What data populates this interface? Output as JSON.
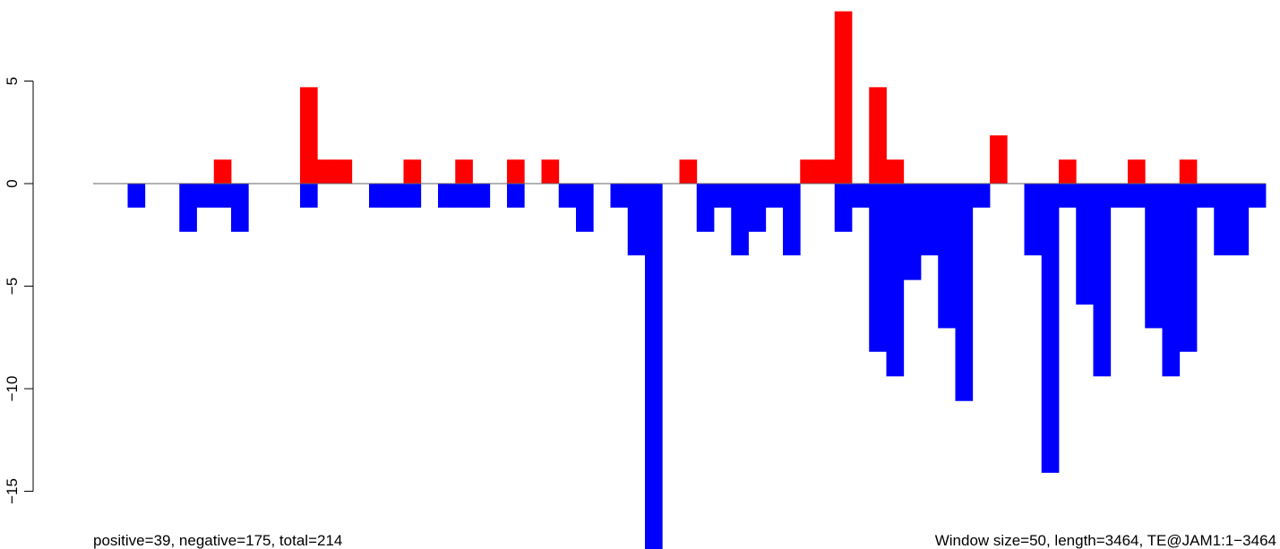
{
  "chart_data": {
    "type": "bar",
    "x_range": [
      0,
      3464
    ],
    "ylim": [
      -17.9,
      8.5
    ],
    "yticks": [
      5,
      0,
      -5,
      -10,
      -15
    ],
    "ytick_labels": [
      "5",
      "0",
      "−5",
      "−10",
      "−15"
    ],
    "positive_color": "#ff0000",
    "negative_color": "#0000ff",
    "baseline_color": "#666666",
    "series": [
      {
        "name": "positive",
        "values": [
          0,
          0,
          0,
          0,
          0,
          0,
          0,
          1.17,
          0,
          0,
          0,
          0,
          4.7,
          1.17,
          1.17,
          0,
          0,
          0,
          1.17,
          0,
          0,
          1.17,
          0,
          0,
          1.17,
          0,
          1.17,
          0,
          0,
          0,
          0,
          0,
          0,
          0,
          1.17,
          0,
          0,
          0,
          0,
          0,
          0,
          1.17,
          1.17,
          8.4,
          0,
          4.7,
          1.17,
          0,
          0,
          0,
          0,
          0,
          2.35,
          0,
          0,
          0,
          1.17,
          0,
          0,
          0,
          1.17,
          0,
          0,
          1.17,
          0,
          0,
          0,
          0
        ]
      },
      {
        "name": "negative",
        "values": [
          0,
          0,
          -1.17,
          0,
          0,
          -2.35,
          -1.17,
          -1.17,
          -2.35,
          0,
          0,
          0,
          -1.17,
          0,
          0,
          0,
          -1.17,
          -1.17,
          -1.17,
          0,
          -1.17,
          -1.17,
          -1.17,
          0,
          -1.17,
          0,
          0,
          -1.17,
          -2.35,
          0,
          -1.17,
          -3.5,
          -17.9,
          0,
          0,
          -2.35,
          -1.17,
          -3.5,
          -2.35,
          -1.17,
          -3.5,
          0,
          0,
          -2.35,
          -1.17,
          -8.2,
          -9.4,
          -4.7,
          -3.5,
          -7.05,
          -10.6,
          -1.17,
          0,
          0,
          -3.5,
          -14.1,
          -1.17,
          -5.9,
          -9.4,
          -1.17,
          -1.17,
          -7.05,
          -9.4,
          -8.2,
          -1.17,
          -3.5,
          -3.5,
          -1.17
        ]
      }
    ]
  },
  "footer": {
    "left": "positive=39, negative=175, total=214",
    "right": "Window size=50, length=3464, TE@JAM1:1−3464"
  }
}
